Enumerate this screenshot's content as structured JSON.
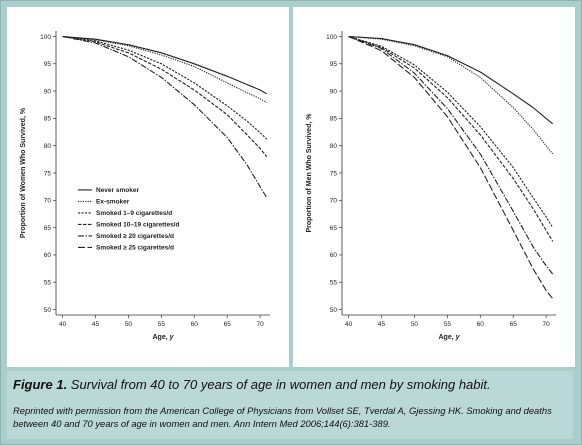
{
  "chart_data": [
    {
      "type": "line",
      "ylabel": "Proportion of Women Who Survived, %",
      "xlabel": "Age, ",
      "xlabel_italic": "y",
      "xlim": [
        39,
        71.5
      ],
      "ylim": [
        49,
        101
      ],
      "xticks": [
        40,
        45,
        50,
        55,
        60,
        65,
        70
      ],
      "yticks": [
        50,
        55,
        60,
        65,
        70,
        75,
        80,
        85,
        90,
        95,
        100
      ],
      "grid": false,
      "legend_position": "middle-left",
      "legend": [
        "Never smoker",
        "Ex-smoker",
        "Smoked 1–9 cigarettes/d",
        "Smoked 10–19 cigarettes/d",
        "Smoked ≥ 20 cigarettes/d",
        "Smoked ≥ 25 cigarettes/d"
      ],
      "series": [
        {
          "name": "Never smoker",
          "x": [
            40,
            45,
            50,
            55,
            60,
            65,
            68,
            70,
            71
          ],
          "y": [
            100,
            99.5,
            98.5,
            97,
            95,
            92.7,
            91.2,
            90.2,
            89.5
          ]
        },
        {
          "name": "Ex-smoker",
          "x": [
            40,
            45,
            50,
            55,
            60,
            65,
            68,
            70,
            71
          ],
          "y": [
            100,
            99.4,
            98.3,
            96.6,
            94.5,
            91.5,
            89.7,
            88.6,
            87.9
          ]
        },
        {
          "name": "Smoked 1–9 cigarettes/d",
          "x": [
            40,
            45,
            50,
            55,
            60,
            65,
            68,
            70,
            71
          ],
          "y": [
            100,
            99.2,
            97.5,
            95,
            91.5,
            87.3,
            84.5,
            82.4,
            81.2
          ]
        },
        {
          "name": "Smoked 10–19 cigarettes/d",
          "x": [
            40,
            45,
            50,
            55,
            60,
            65,
            68,
            70,
            71
          ],
          "y": [
            100,
            99,
            97,
            94,
            90.2,
            85.7,
            82,
            79.5,
            78
          ]
        },
        {
          "name": "Smoked ≥ 20 cigarettes/d",
          "x": [
            40,
            45,
            50,
            55,
            60,
            65,
            68,
            70,
            71
          ],
          "y": [
            100,
            98.8,
            96.3,
            92.5,
            87.5,
            81.5,
            76.5,
            72.5,
            70.5
          ]
        }
      ]
    },
    {
      "type": "line",
      "ylabel": "Proportion of Men Who Survived, %",
      "xlabel": "Age, ",
      "xlabel_italic": "y",
      "xlim": [
        39,
        71.5
      ],
      "ylim": [
        49,
        101
      ],
      "xticks": [
        40,
        45,
        50,
        55,
        60,
        65,
        70
      ],
      "yticks": [
        50,
        55,
        60,
        65,
        70,
        75,
        80,
        85,
        90,
        95,
        100
      ],
      "grid": false,
      "series": [
        {
          "name": "Never smoker",
          "x": [
            40,
            45,
            50,
            55,
            60,
            65,
            68,
            70,
            71
          ],
          "y": [
            100,
            99.6,
            98.5,
            96.5,
            93.5,
            89.5,
            87,
            85,
            84
          ]
        },
        {
          "name": "Ex-smoker",
          "x": [
            40,
            45,
            50,
            55,
            60,
            65,
            68,
            70,
            71
          ],
          "y": [
            100,
            99.5,
            98.3,
            96.3,
            92.5,
            87,
            83,
            80,
            78.5
          ]
        },
        {
          "name": "Smoked 1–9 cigarettes/d",
          "x": [
            40,
            45,
            50,
            55,
            60,
            65,
            68,
            70,
            71
          ],
          "y": [
            100,
            98.2,
            94.8,
            89.8,
            83.5,
            76,
            70.5,
            67,
            65
          ]
        },
        {
          "name": "Smoked 10–19 cigarettes/d",
          "x": [
            40,
            45,
            50,
            55,
            60,
            65,
            68,
            70,
            71
          ],
          "y": [
            100,
            98,
            94.2,
            88.8,
            82,
            74,
            68.5,
            64.5,
            62.5
          ]
        },
        {
          "name": "Smoked ≥ 20 cigarettes/d",
          "x": [
            40,
            45,
            50,
            55,
            60,
            65,
            68,
            70,
            71
          ],
          "y": [
            100,
            97.8,
            93.3,
            86.8,
            78.5,
            68,
            61.5,
            58,
            56.5
          ]
        },
        {
          "name": "Smoked ≥ 25 cigarettes/d",
          "x": [
            40,
            45,
            50,
            55,
            60,
            65,
            68,
            70,
            71
          ],
          "y": [
            100,
            97.4,
            92.5,
            85.3,
            76,
            64.5,
            57.5,
            53.5,
            52
          ]
        }
      ]
    }
  ],
  "caption": {
    "label": "Figure 1.",
    "title": " Survival from 40 to 70 years of age in women and men by smoking habit.",
    "note": "Reprinted with permission from the American College of Physicians from Vollset SE, Tverdal A, Gjessing HK. Smoking and deaths between 40 and 70 years of age in women and men. Ann Intern Med 2006;144(6):381-389."
  },
  "colors": {
    "background": "#a9cfcd",
    "caption_background": "#bad8d6",
    "plot_background": "#ffffff",
    "line": "#222222"
  }
}
